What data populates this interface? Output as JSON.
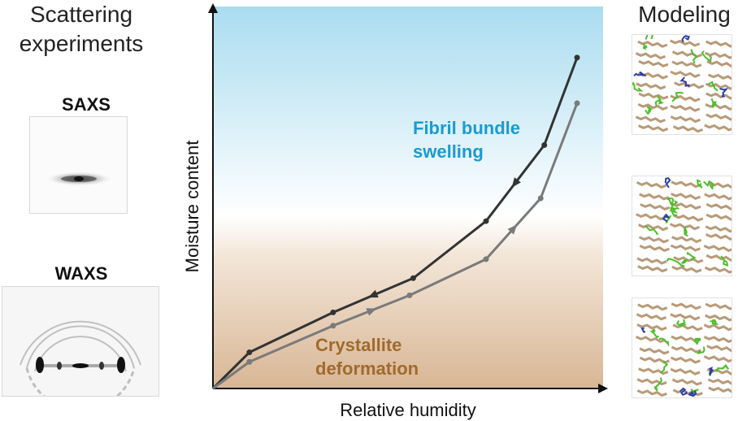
{
  "left": {
    "title_line1": "Scattering",
    "title_line2": "experiments",
    "saxs_label": "SAXS",
    "waxs_label": "WAXS"
  },
  "right": {
    "title": "Modeling",
    "panel_count": 3
  },
  "colors": {
    "sky_top": "#a9dcf0",
    "sand_bottom": "#d8b695",
    "fibril_text": "#1a9bd0",
    "crystallite_text": "#a16a2c",
    "upper_curve": "#333333",
    "lower_curve": "#7a7a7a",
    "model_fibril": "#b89a78",
    "model_green": "#4cbf2a",
    "model_blue": "#2b3fa8"
  },
  "chart_data": {
    "type": "line",
    "xlabel": "Relative humidity",
    "ylabel": "Moisture content",
    "annotations": [
      {
        "line1": "Fibril bundle",
        "line2": "swelling"
      },
      {
        "line1": "Crystallite",
        "line2": "deformation"
      }
    ],
    "series": [
      {
        "direction": "desorption",
        "x": [
          0,
          0.1,
          0.33,
          0.55,
          0.75,
          0.91,
          1.0
        ],
        "y": [
          0,
          0.095,
          0.2,
          0.29,
          0.44,
          0.64,
          0.87
        ]
      },
      {
        "direction": "absorption",
        "x": [
          0,
          0.1,
          0.33,
          0.54,
          0.75,
          0.9,
          1.0
        ],
        "y": [
          0,
          0.07,
          0.165,
          0.245,
          0.34,
          0.5,
          0.75
        ]
      }
    ],
    "xlim": [
      0,
      1
    ],
    "ylim": [
      0,
      1
    ]
  }
}
